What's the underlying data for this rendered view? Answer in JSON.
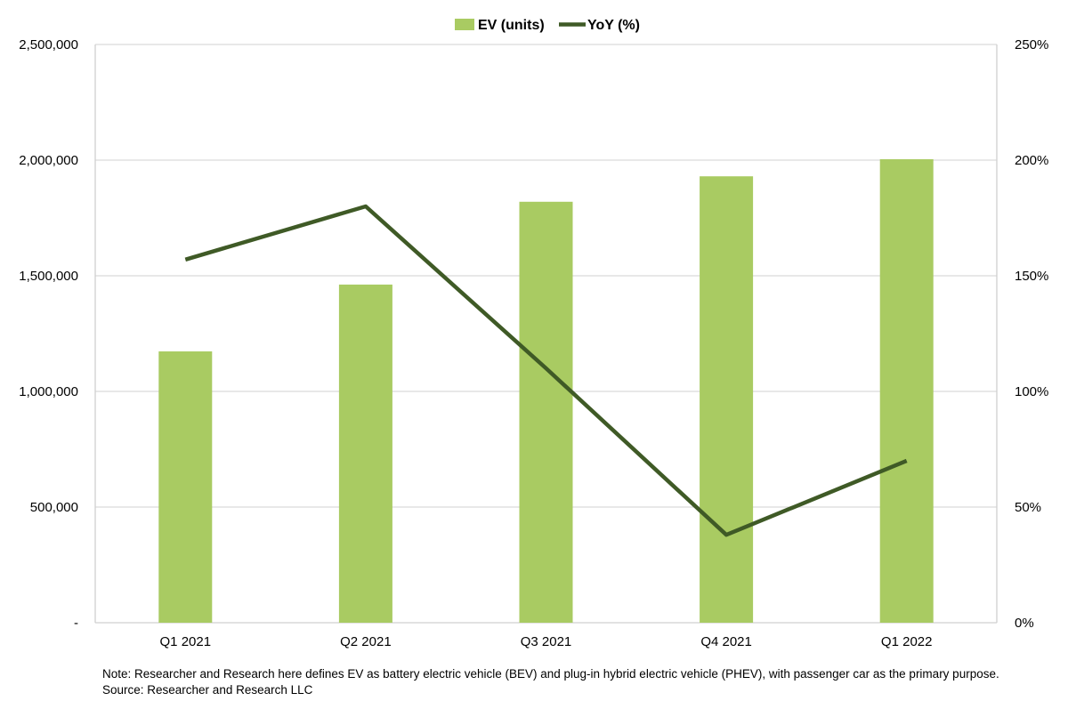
{
  "chart_data": {
    "type": "bar+line",
    "categories": [
      "Q1 2021",
      "Q2 2021",
      "Q3 2021",
      "Q4 2021",
      "Q1 2022"
    ],
    "series": [
      {
        "name": "EV (units)",
        "type": "bar",
        "axis": "left",
        "color": "#a9cb62",
        "values": [
          1173000,
          1462000,
          1820000,
          1930000,
          2004000
        ]
      },
      {
        "name": "YoY (%)",
        "type": "line",
        "axis": "right",
        "color": "#3f5a26",
        "values": [
          157,
          180,
          110,
          38,
          70
        ]
      }
    ],
    "left_axis": {
      "ylim": [
        0,
        2500000
      ],
      "ticks": [
        0,
        500000,
        1000000,
        1500000,
        2000000,
        2500000
      ],
      "tick_labels": [
        "-",
        "500,000",
        "1,000,000",
        "1,500,000",
        "2,000,000",
        "2,500,000"
      ]
    },
    "right_axis": {
      "ylim": [
        0,
        250
      ],
      "ticks": [
        0,
        50,
        100,
        150,
        200,
        250
      ],
      "tick_labels": [
        "0%",
        "50%",
        "100%",
        "150%",
        "200%",
        "250%"
      ]
    },
    "grid": true,
    "legend_placement": "top-center"
  },
  "notes": {
    "note": "Note:  Researcher and Research here defines EV as battery electric vehicle (BEV) and plug-in hybrid electric vehicle (PHEV), with passenger car as the primary purpose.",
    "source": "Source: Researcher and Research LLC"
  }
}
